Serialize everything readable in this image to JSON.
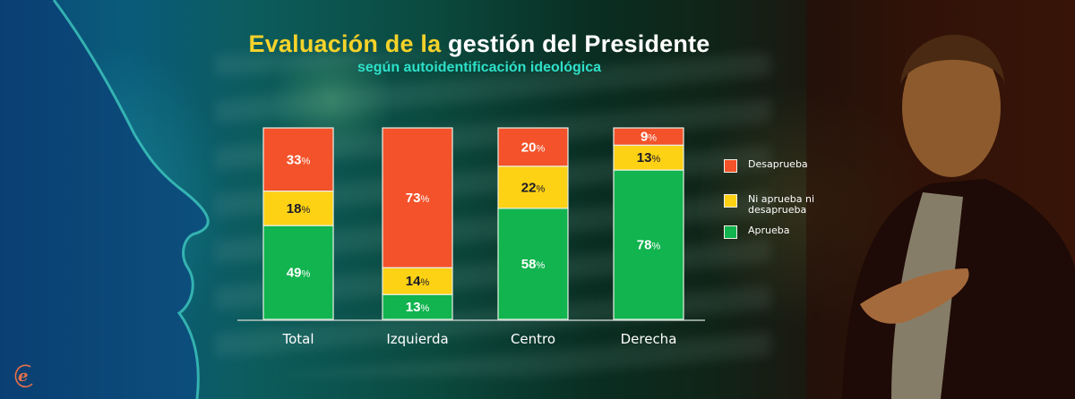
{
  "header": {
    "title_part1": "Evaluación de la",
    "title_part2": "gestión del Presidente",
    "subtitle": "según autoidentificación ideológica"
  },
  "colors": {
    "desaprueba": "#f3522a",
    "ni": "#fdd114",
    "aprueba": "#11b44e",
    "title_accent": "#f6d22a",
    "subtitle": "#2ee0c8"
  },
  "legend": [
    {
      "key": "desaprueba",
      "label": "Desaprueba"
    },
    {
      "key": "ni",
      "label": "Ni aprueba ni desaprueba"
    },
    {
      "key": "aprueba",
      "label": "Aprueba"
    }
  ],
  "logo": {
    "letter": "e"
  },
  "chart_data": {
    "type": "bar",
    "stacked": true,
    "title": "Evaluación de la gestión del Presidente",
    "subtitle": "según autoidentificación ideológica",
    "categories": [
      "Total",
      "Izquierda",
      "Centro",
      "Derecha"
    ],
    "unit": "%",
    "ylim": [
      0,
      100
    ],
    "grid": false,
    "legend_position": "right",
    "series": [
      {
        "name": "Aprueba",
        "key": "aprueba",
        "values": [
          49,
          13,
          58,
          78
        ]
      },
      {
        "name": "Ni aprueba ni desaprueba",
        "key": "ni",
        "values": [
          18,
          14,
          22,
          13
        ]
      },
      {
        "name": "Desaprueba",
        "key": "desaprueba",
        "values": [
          33,
          73,
          20,
          9
        ]
      }
    ]
  }
}
